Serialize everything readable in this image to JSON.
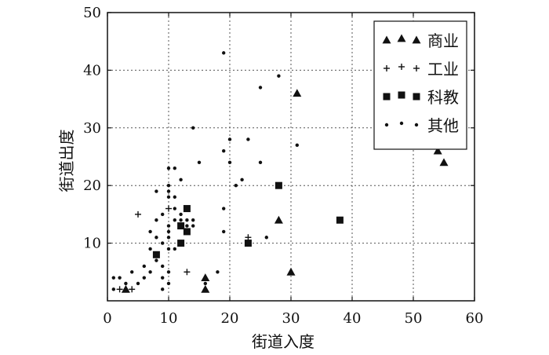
{
  "chart_data": {
    "type": "scatter",
    "xlabel": "街道入度",
    "ylabel": "街道出度",
    "xlim": [
      0,
      60
    ],
    "ylim": [
      0,
      50
    ],
    "xticks": [
      0,
      10,
      20,
      30,
      40,
      50,
      60
    ],
    "yticks": [
      10,
      20,
      30,
      40,
      50
    ],
    "grid": true,
    "legend_position": "top-right",
    "series": [
      {
        "name": "商业",
        "marker": "triangle",
        "points": [
          [
            3,
            2
          ],
          [
            16,
            4
          ],
          [
            16,
            2
          ],
          [
            28,
            14
          ],
          [
            30,
            5
          ],
          [
            31,
            36
          ],
          [
            54,
            26
          ],
          [
            55,
            24
          ]
        ]
      },
      {
        "name": "工业",
        "marker": "plus",
        "points": [
          [
            2,
            2
          ],
          [
            4,
            2
          ],
          [
            5,
            15
          ],
          [
            10,
            16
          ],
          [
            13,
            5
          ],
          [
            23,
            11
          ]
        ]
      },
      {
        "name": "科教",
        "marker": "square",
        "points": [
          [
            8,
            8
          ],
          [
            12,
            13
          ],
          [
            12,
            10
          ],
          [
            13,
            12
          ],
          [
            13,
            16
          ],
          [
            23,
            10
          ],
          [
            28,
            20
          ],
          [
            38,
            14
          ]
        ]
      },
      {
        "name": "其他",
        "marker": "dot",
        "points": [
          [
            1,
            4
          ],
          [
            1,
            2
          ],
          [
            2,
            4
          ],
          [
            3,
            3
          ],
          [
            4,
            5
          ],
          [
            5,
            3
          ],
          [
            6,
            6
          ],
          [
            6,
            4
          ],
          [
            7,
            9
          ],
          [
            7,
            5
          ],
          [
            7,
            12
          ],
          [
            8,
            19
          ],
          [
            8,
            14
          ],
          [
            8,
            11
          ],
          [
            8,
            7
          ],
          [
            9,
            15
          ],
          [
            9,
            10
          ],
          [
            9,
            4
          ],
          [
            9,
            2
          ],
          [
            9,
            6
          ],
          [
            10,
            23
          ],
          [
            10,
            20
          ],
          [
            10,
            19
          ],
          [
            10,
            18
          ],
          [
            10,
            13
          ],
          [
            10,
            12
          ],
          [
            10,
            11
          ],
          [
            10,
            9
          ],
          [
            10,
            5
          ],
          [
            10,
            3
          ],
          [
            11,
            23
          ],
          [
            11,
            18
          ],
          [
            11,
            16
          ],
          [
            11,
            14
          ],
          [
            11,
            9
          ],
          [
            12,
            21
          ],
          [
            12,
            15
          ],
          [
            12,
            14
          ],
          [
            13,
            14
          ],
          [
            13,
            13
          ],
          [
            14,
            14
          ],
          [
            14,
            13
          ],
          [
            14,
            30
          ],
          [
            15,
            24
          ],
          [
            16,
            3
          ],
          [
            18,
            5
          ],
          [
            19,
            43
          ],
          [
            19,
            26
          ],
          [
            19,
            16
          ],
          [
            19,
            12
          ],
          [
            20,
            28
          ],
          [
            20,
            24
          ],
          [
            21,
            20
          ],
          [
            22,
            21
          ],
          [
            23,
            28
          ],
          [
            25,
            37
          ],
          [
            25,
            24
          ],
          [
            26,
            11
          ],
          [
            28,
            39
          ],
          [
            31,
            27
          ]
        ]
      }
    ]
  }
}
